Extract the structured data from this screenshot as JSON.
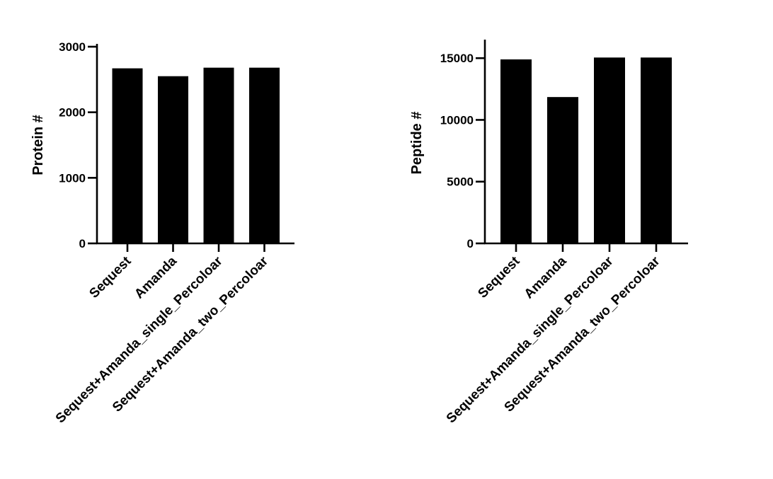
{
  "colors": {
    "bar": "#000000",
    "axis": "#000000",
    "background": "#ffffff"
  },
  "chart_data": [
    {
      "type": "bar",
      "title": "",
      "xlabel": "",
      "ylabel": "Protein #",
      "categories": [
        "Sequest",
        "Amanda",
        "Sequest+Amanda_single_Percoloar",
        "Sequest+Amanda_two_Percoloar"
      ],
      "values": [
        2670,
        2550,
        2680,
        2680
      ],
      "ylim": [
        0,
        3000
      ],
      "yticks": [
        0,
        1000,
        2000,
        3000
      ],
      "grid": false,
      "legend": "none"
    },
    {
      "type": "bar",
      "title": "",
      "xlabel": "",
      "ylabel": "Peptide #",
      "categories": [
        "Sequest",
        "Amanda",
        "Sequest+Amanda_single_Percoloar",
        "Sequest+Amanda_two_Percoloar"
      ],
      "values": [
        14900,
        11850,
        15050,
        15050
      ],
      "ylim": [
        0,
        16500
      ],
      "yticks": [
        0,
        5000,
        10000,
        15000
      ],
      "grid": false,
      "legend": "none"
    }
  ]
}
